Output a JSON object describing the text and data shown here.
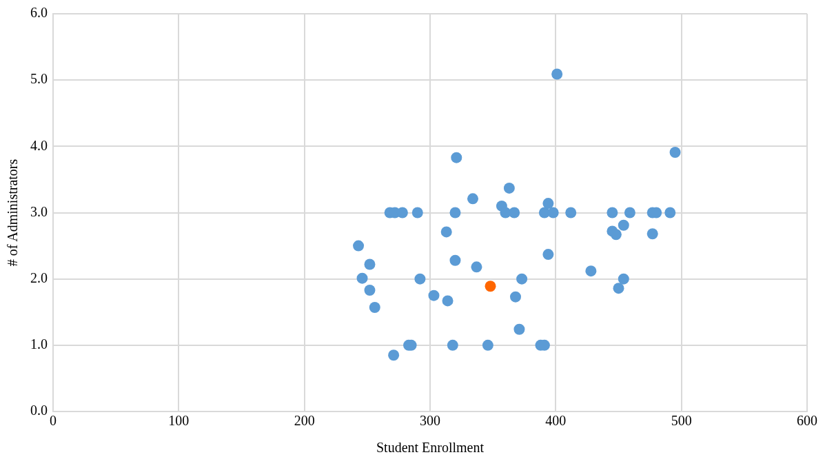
{
  "chart_data": {
    "type": "scatter",
    "xlabel": "Student Enrollment",
    "ylabel": "# of Administrators",
    "xlim": [
      0,
      600
    ],
    "xticks": [
      0,
      100,
      200,
      300,
      400,
      500,
      600
    ],
    "ylim": [
      0,
      6
    ],
    "yticks": [
      {
        "value": 0,
        "label": "0.0"
      },
      {
        "value": 1,
        "label": "1.0"
      },
      {
        "value": 2,
        "label": "2.0"
      },
      {
        "value": 3,
        "label": "3.0"
      },
      {
        "value": 4,
        "label": "4.0"
      },
      {
        "value": 5,
        "label": "5.0"
      },
      {
        "value": 6,
        "label": "6.0"
      }
    ],
    "grid": true,
    "legend": false,
    "marker": "circle",
    "series": [
      {
        "color": "#5b9bd5",
        "x": [
          243,
          246,
          252,
          252,
          256,
          268,
          272,
          278,
          271,
          283,
          285,
          290,
          292,
          303,
          313,
          314,
          318,
          320,
          320,
          321,
          334,
          337,
          346,
          357,
          360,
          363,
          367,
          368,
          371,
          373,
          388,
          391,
          391,
          394,
          394,
          398,
          401,
          412,
          428,
          445,
          445,
          448,
          450,
          454,
          454,
          459,
          477,
          480,
          477,
          491,
          495
        ],
        "values": [
          2.5,
          2.01,
          2.22,
          1.83,
          1.57,
          3.0,
          3.0,
          3.0,
          0.85,
          1.0,
          1.0,
          3.0,
          2.0,
          1.75,
          2.71,
          1.67,
          1.0,
          3.0,
          2.28,
          3.83,
          3.21,
          2.18,
          1.0,
          3.1,
          3.0,
          3.37,
          3.0,
          1.73,
          1.24,
          2.0,
          1.0,
          1.0,
          3.0,
          3.14,
          2.37,
          3.0,
          5.09,
          3.0,
          2.12,
          3.0,
          2.72,
          2.67,
          1.86,
          2.81,
          2.0,
          3.0,
          3.0,
          3.0,
          2.68,
          3.0,
          3.91
        ]
      },
      {
        "color": "#ff6600",
        "x": [
          348
        ],
        "values": [
          1.89
        ]
      }
    ]
  }
}
